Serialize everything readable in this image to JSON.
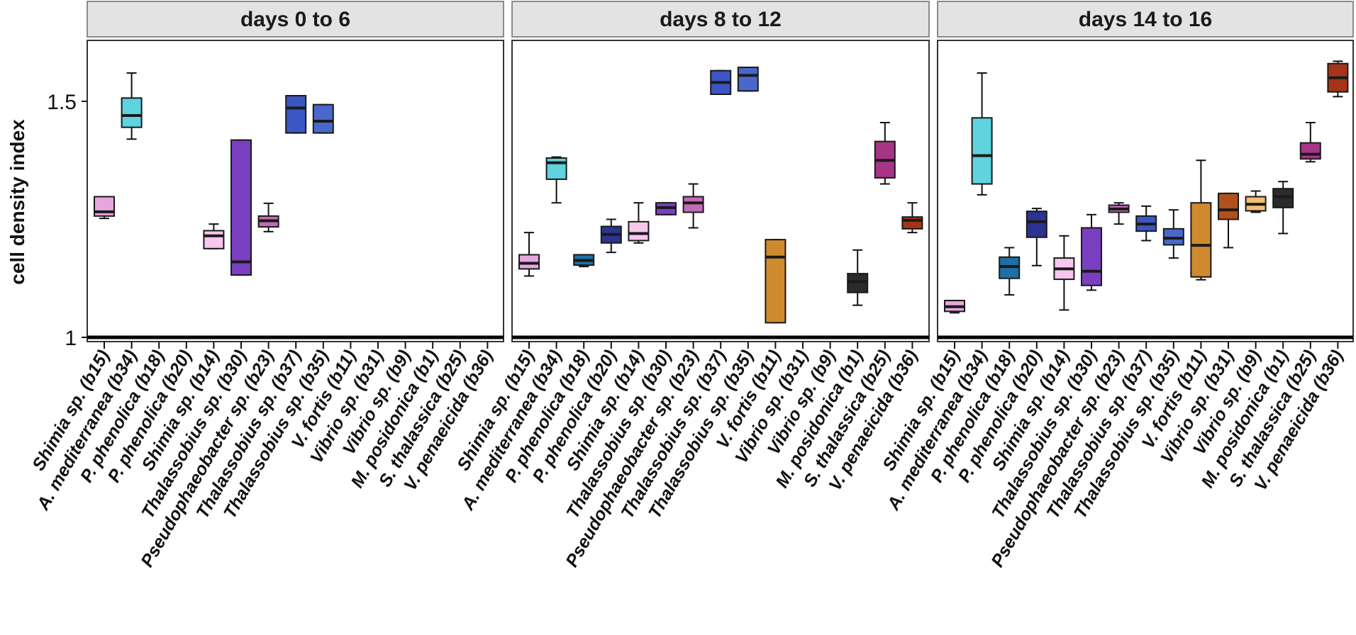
{
  "chart_data": {
    "type": "box",
    "ylabel": "cell density index",
    "ylim": [
      0.97,
      1.64
    ],
    "yticks": [
      1,
      1.5
    ],
    "ytick_labels": [
      "1",
      "1.5"
    ],
    "reference_line": 1.0,
    "categories": [
      "Shimia sp. (b15)",
      "A. mediterranea (b34)",
      "P. phenolica (b18)",
      "P. phenolica (b20)",
      "Shimia sp. (b14)",
      "Thalassobius sp. (b30)",
      "Pseudophaeobacter sp. (b23)",
      "Thalassobius sp. (b37)",
      "Thalassobius sp. (b35)",
      "V. fortis (b11)",
      "Vibrio sp. (b31)",
      "Vibrio sp. (b9)",
      "M. posidonica (b1)",
      "S. thalassica (b25)",
      "V. penaeicida (b36)"
    ],
    "colors": [
      "#e8a6e0",
      "#5fd3de",
      "#1f6fa7",
      "#2c3491",
      "#f7c7ef",
      "#7a3fc0",
      "#c46bb8",
      "#3c56c4",
      "#4a68cc",
      "#cf8a2e",
      "#b2501c",
      "#f7be74",
      "#2b2b2b",
      "#a83488",
      "#a53418"
    ],
    "panels": [
      {
        "title": "days 0 to 6",
        "boxes": [
          {
            "category": 0,
            "min": 1.252,
            "q1": 1.257,
            "median": 1.266,
            "q3": 1.298,
            "max": 1.298
          },
          {
            "category": 1,
            "min": 1.42,
            "q1": 1.445,
            "median": 1.47,
            "q3": 1.507,
            "max": 1.56
          },
          {
            "category": 4,
            "min": 1.188,
            "q1": 1.188,
            "median": 1.215,
            "q3": 1.226,
            "max": 1.24
          },
          {
            "category": 5,
            "min": 1.132,
            "q1": 1.132,
            "median": 1.16,
            "q3": 1.418,
            "max": 1.418
          },
          {
            "category": 6,
            "min": 1.224,
            "q1": 1.234,
            "median": 1.247,
            "q3": 1.257,
            "max": 1.284
          },
          {
            "category": 7,
            "min": 1.433,
            "q1": 1.433,
            "median": 1.486,
            "q3": 1.512,
            "max": 1.512
          },
          {
            "category": 8,
            "min": 1.433,
            "q1": 1.433,
            "median": 1.458,
            "q3": 1.493,
            "max": 1.493
          }
        ]
      },
      {
        "title": "days 8 to 12",
        "boxes": [
          {
            "category": 0,
            "min": 1.13,
            "q1": 1.145,
            "median": 1.157,
            "q3": 1.175,
            "max": 1.222
          },
          {
            "category": 1,
            "min": 1.285,
            "q1": 1.335,
            "median": 1.37,
            "q3": 1.38,
            "max": 1.382
          },
          {
            "category": 2,
            "min": 1.15,
            "q1": 1.153,
            "median": 1.163,
            "q3": 1.175,
            "max": 1.175
          },
          {
            "category": 3,
            "min": 1.18,
            "q1": 1.2,
            "median": 1.218,
            "q3": 1.235,
            "max": 1.25
          },
          {
            "category": 4,
            "min": 1.2,
            "q1": 1.205,
            "median": 1.22,
            "q3": 1.245,
            "max": 1.285
          },
          {
            "category": 5,
            "min": 1.26,
            "q1": 1.26,
            "median": 1.275,
            "q3": 1.285,
            "max": 1.285
          },
          {
            "category": 6,
            "min": 1.232,
            "q1": 1.265,
            "median": 1.285,
            "q3": 1.298,
            "max": 1.325
          },
          {
            "category": 7,
            "min": 1.515,
            "q1": 1.515,
            "median": 1.54,
            "q3": 1.565,
            "max": 1.565
          },
          {
            "category": 8,
            "min": 1.522,
            "q1": 1.522,
            "median": 1.555,
            "q3": 1.572,
            "max": 1.572
          },
          {
            "category": 9,
            "min": 1.031,
            "q1": 1.031,
            "median": 1.17,
            "q3": 1.207,
            "max": 1.207
          },
          {
            "category": 12,
            "min": 1.068,
            "q1": 1.095,
            "median": 1.118,
            "q3": 1.135,
            "max": 1.185
          },
          {
            "category": 13,
            "min": 1.325,
            "q1": 1.338,
            "median": 1.375,
            "q3": 1.415,
            "max": 1.455
          },
          {
            "category": 14,
            "min": 1.222,
            "q1": 1.23,
            "median": 1.248,
            "q3": 1.255,
            "max": 1.285
          }
        ]
      },
      {
        "title": "days 14 to 16",
        "boxes": [
          {
            "category": 0,
            "min": 1.052,
            "q1": 1.055,
            "median": 1.065,
            "q3": 1.078,
            "max": 1.078
          },
          {
            "category": 1,
            "min": 1.302,
            "q1": 1.325,
            "median": 1.385,
            "q3": 1.465,
            "max": 1.56
          },
          {
            "category": 2,
            "min": 1.09,
            "q1": 1.125,
            "median": 1.15,
            "q3": 1.17,
            "max": 1.19
          },
          {
            "category": 3,
            "min": 1.152,
            "q1": 1.212,
            "median": 1.245,
            "q3": 1.267,
            "max": 1.273
          },
          {
            "category": 4,
            "min": 1.058,
            "q1": 1.123,
            "median": 1.145,
            "q3": 1.168,
            "max": 1.215
          },
          {
            "category": 5,
            "min": 1.1,
            "q1": 1.11,
            "median": 1.14,
            "q3": 1.232,
            "max": 1.26
          },
          {
            "category": 6,
            "min": 1.24,
            "q1": 1.265,
            "median": 1.272,
            "q3": 1.28,
            "max": 1.285
          },
          {
            "category": 7,
            "min": 1.205,
            "q1": 1.225,
            "median": 1.24,
            "q3": 1.257,
            "max": 1.278
          },
          {
            "category": 8,
            "min": 1.168,
            "q1": 1.196,
            "median": 1.21,
            "q3": 1.23,
            "max": 1.27
          },
          {
            "category": 9,
            "min": 1.122,
            "q1": 1.128,
            "median": 1.195,
            "q3": 1.285,
            "max": 1.375
          },
          {
            "category": 10,
            "min": 1.19,
            "q1": 1.25,
            "median": 1.27,
            "q3": 1.305,
            "max": 1.305
          },
          {
            "category": 11,
            "min": 1.265,
            "q1": 1.268,
            "median": 1.282,
            "q3": 1.298,
            "max": 1.31
          },
          {
            "category": 12,
            "min": 1.22,
            "q1": 1.275,
            "median": 1.298,
            "q3": 1.315,
            "max": 1.33
          },
          {
            "category": 13,
            "min": 1.372,
            "q1": 1.378,
            "median": 1.388,
            "q3": 1.412,
            "max": 1.455
          },
          {
            "category": 14,
            "min": 1.51,
            "q1": 1.52,
            "median": 1.55,
            "q3": 1.58,
            "max": 1.585
          }
        ]
      }
    ]
  }
}
